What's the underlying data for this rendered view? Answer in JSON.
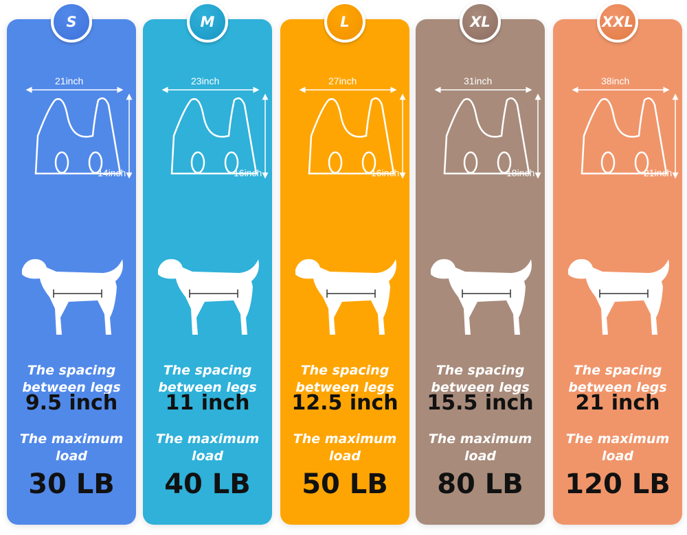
{
  "sizes": [
    {
      "size": "S",
      "color": "#5189e9",
      "badge_color": "#3f72db",
      "width": "21inch",
      "height": "14inch",
      "spacing_label": "The spacing between legs",
      "spacing": "9.5 inch",
      "load_label": "The maximum load",
      "load": "30 LB",
      "dog": "dachshund"
    },
    {
      "size": "M",
      "color": "#2fb1d9",
      "badge_color": "#1a97c4",
      "width": "23inch",
      "height": "16inch",
      "spacing_label": "The spacing between legs",
      "spacing": "11 inch",
      "load_label": "The maximum load",
      "load": "40 LB",
      "dog": "husky"
    },
    {
      "size": "L",
      "color": "#fea503",
      "badge_color": "#f29200",
      "width": "27inch",
      "height": "16inch",
      "spacing_label": "The spacing between legs",
      "spacing": "12.5 inch",
      "load_label": "The maximum load",
      "load": "50 LB",
      "dog": "setter"
    },
    {
      "size": "XL",
      "color": "#a88b7b",
      "badge_color": "#8e6d62",
      "width": "31inch",
      "height": "18inch",
      "spacing_label": "The spacing between legs",
      "spacing": "15.5 inch",
      "load_label": "The maximum load",
      "load": "80 LB",
      "dog": "golden-retriever"
    },
    {
      "size": "XXL",
      "color": "#f0956a",
      "badge_color": "#e27a43",
      "width": "38inch",
      "height": "21inch",
      "spacing_label": "The spacing between legs",
      "spacing": "21 inch",
      "load_label": "The maximum load",
      "load": "120 LB",
      "dog": "doberman"
    }
  ]
}
